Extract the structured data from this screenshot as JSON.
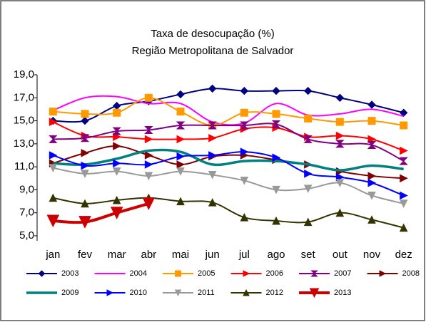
{
  "chart_data": {
    "type": "line",
    "title": "Taxa de desocupação (%)",
    "subtitle": "Região Metropolitana de Salvador",
    "categories": [
      "jan",
      "fev",
      "mar",
      "abr",
      "mai",
      "jun",
      "jul",
      "ago",
      "set",
      "out",
      "nov",
      "dez"
    ],
    "ylim": [
      5,
      19
    ],
    "yticks": [
      {
        "value": 5,
        "label": "5,0"
      },
      {
        "value": 7,
        "label": "7,0"
      },
      {
        "value": 9,
        "label": "9,0"
      },
      {
        "value": 11,
        "label": "11,0"
      },
      {
        "value": 13,
        "label": "13,0"
      },
      {
        "value": 15,
        "label": "15,0"
      },
      {
        "value": 17,
        "label": "17,0"
      },
      {
        "value": 19,
        "label": "19,0"
      }
    ],
    "grid": false,
    "legend": "bottom",
    "series": [
      {
        "name": "2003",
        "color": "#000080",
        "marker": "diamond",
        "values": [
          15.0,
          15.0,
          16.3,
          16.7,
          17.3,
          17.8,
          17.6,
          17.6,
          17.6,
          17.0,
          16.4,
          15.7
        ]
      },
      {
        "name": "2004",
        "color": "#ff00ff",
        "marker": "none",
        "values": [
          15.9,
          17.0,
          17.1,
          16.5,
          16.5,
          14.9,
          14.8,
          16.5,
          15.5,
          15.6,
          16.0,
          15.4
        ]
      },
      {
        "name": "2005",
        "color": "#ff9900",
        "marker": "square",
        "values": [
          15.8,
          15.6,
          15.7,
          17.0,
          15.8,
          14.6,
          15.7,
          15.6,
          15.2,
          14.9,
          15.0,
          14.6
        ]
      },
      {
        "name": "2006",
        "color": "#ff0000",
        "marker": "triangle-right",
        "values": [
          14.9,
          13.7,
          13.6,
          13.4,
          13.4,
          13.5,
          14.3,
          14.4,
          13.6,
          13.7,
          13.4,
          12.4
        ]
      },
      {
        "name": "2007",
        "color": "#800080",
        "marker": "hourglass",
        "values": [
          13.4,
          13.5,
          14.1,
          14.2,
          14.6,
          14.6,
          14.6,
          14.7,
          13.4,
          13.0,
          12.9,
          11.5
        ]
      },
      {
        "name": "2008",
        "color": "#800000",
        "marker": "triangle-right",
        "values": [
          11.3,
          12.2,
          12.8,
          12.0,
          11.2,
          11.9,
          12.0,
          11.6,
          11.2,
          10.6,
          10.2,
          10.0
        ]
      },
      {
        "name": "2009",
        "color": "#008080",
        "marker": "none",
        "values": [
          11.3,
          11.2,
          11.7,
          12.4,
          12.3,
          11.2,
          11.5,
          11.5,
          11.2,
          10.7,
          11.1,
          10.8
        ]
      },
      {
        "name": "2010",
        "color": "#0000ff",
        "marker": "triangle-right",
        "values": [
          12.0,
          11.1,
          11.3,
          11.2,
          11.9,
          12.0,
          12.3,
          11.8,
          10.4,
          10.1,
          9.6,
          8.5
        ]
      },
      {
        "name": "2011",
        "color": "#999999",
        "marker": "triangle-down",
        "values": [
          10.9,
          10.4,
          10.6,
          10.2,
          10.6,
          10.3,
          9.8,
          9.0,
          9.1,
          9.6,
          8.5,
          7.8
        ]
      },
      {
        "name": "2012",
        "color": "#333300",
        "marker": "triangle-up",
        "values": [
          8.3,
          7.8,
          8.1,
          8.3,
          8.0,
          7.9,
          6.6,
          6.3,
          6.2,
          7.0,
          6.4,
          5.7
        ]
      },
      {
        "name": "2013",
        "color": "#cc0000",
        "marker": "triangle-down",
        "values": [
          6.3,
          6.2,
          7.0,
          7.8,
          null,
          null,
          null,
          null,
          null,
          null,
          null,
          null
        ]
      }
    ]
  }
}
